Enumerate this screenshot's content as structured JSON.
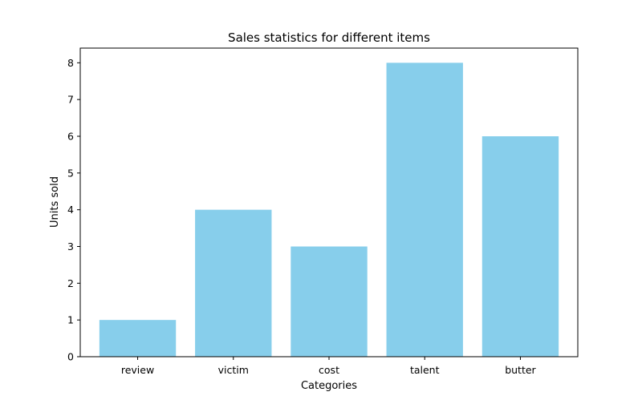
{
  "chart_data": {
    "type": "bar",
    "title": "Sales statistics for different items",
    "xlabel": "Categories",
    "ylabel": "Units sold",
    "categories": [
      "review",
      "victim",
      "cost",
      "talent",
      "butter"
    ],
    "values": [
      1,
      4,
      3,
      8,
      6
    ],
    "ylim": [
      0,
      8.4
    ],
    "yticks": [
      0,
      1,
      2,
      3,
      4,
      5,
      6,
      7,
      8
    ],
    "grid": false,
    "legend": "none",
    "bar_color": "#87ceeb",
    "axis_color": "#000000"
  }
}
